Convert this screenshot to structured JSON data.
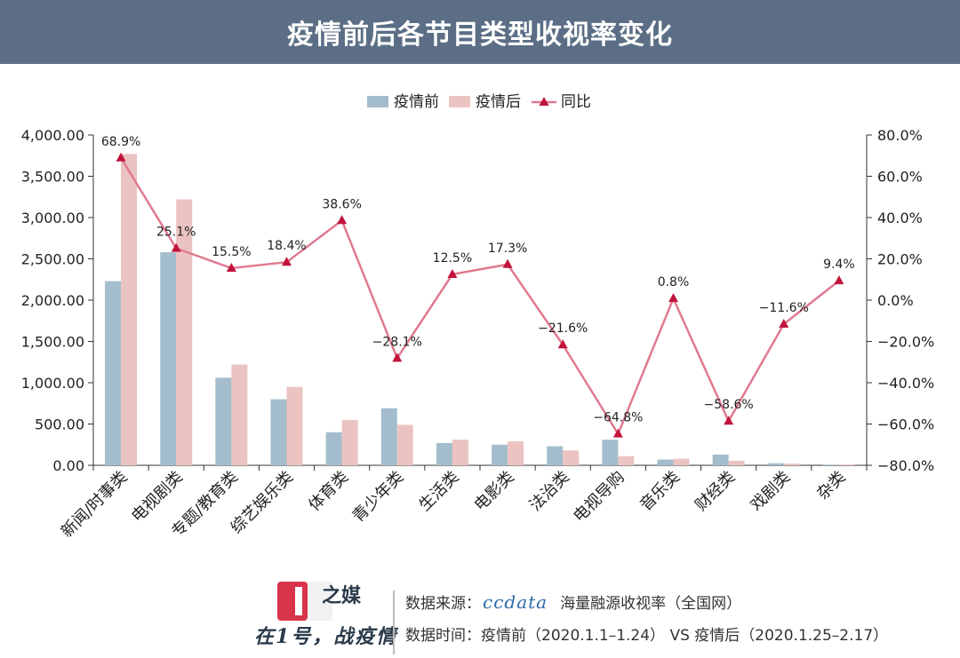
{
  "title": "疫情前后各节目类型收视率变化",
  "colors": {
    "header_bg": "#5b6e85",
    "before": "#a3bdcc",
    "after": "#ebc4c1",
    "yoy": "#e07a90",
    "yoy_marker": "#c0143c"
  },
  "legend": {
    "before": "疫情前",
    "after": "疫情后",
    "yoy": "同比"
  },
  "chart_data": {
    "type": "bar",
    "title": "疫情前后各节目类型收视率变化",
    "categories": [
      "新闻/时事类",
      "电视剧类",
      "专题/教育类",
      "综艺娱乐类",
      "体育类",
      "青少年类",
      "生活类",
      "电影类",
      "法治类",
      "电视导购",
      "音乐类",
      "财经类",
      "戏剧类",
      "杂类"
    ],
    "series": [
      {
        "name": "疫情前",
        "type": "bar",
        "axis": "left",
        "values": [
          2230,
          2580,
          1060,
          800,
          400,
          690,
          270,
          250,
          230,
          310,
          70,
          130,
          25,
          8
        ]
      },
      {
        "name": "疫情后",
        "type": "bar",
        "axis": "left",
        "values": [
          3770,
          3220,
          1220,
          950,
          550,
          490,
          310,
          290,
          180,
          110,
          80,
          55,
          20,
          10
        ]
      },
      {
        "name": "同比",
        "type": "line",
        "axis": "right",
        "values": [
          68.9,
          25.1,
          15.5,
          18.4,
          38.6,
          -28.1,
          12.5,
          17.3,
          -21.6,
          -64.8,
          0.8,
          -58.6,
          -11.6,
          9.4
        ],
        "labels": [
          "68.9%",
          "25.1%",
          "15.5%",
          "18.4%",
          "38.6%",
          "−28.1%",
          "12.5%",
          "17.3%",
          "−21.6%",
          "−64.8%",
          "0.8%",
          "−58.6%",
          "−11.6%",
          "9.4%"
        ]
      }
    ],
    "ylim_left": [
      0,
      4000
    ],
    "ylim_right": [
      -80,
      80
    ],
    "left_ticks": [
      "0.00",
      "500.00",
      "1,000.00",
      "1,500.00",
      "2,000.00",
      "2,500.00",
      "3,000.00",
      "3,500.00",
      "4,000.00"
    ],
    "right_ticks": [
      "−80.0%",
      "−60.0%",
      "−40.0%",
      "−20.0%",
      "0.0%",
      "20.0%",
      "40.0%",
      "60.0%",
      "80.0%"
    ],
    "legend_position": "top-center",
    "grid": false
  },
  "footer": {
    "logo_word": "之媒",
    "slogan": "在1号，战疫情",
    "source_label": "数据来源：",
    "source_brand": "ccdata",
    "source_desc": "海量融源收视率（全国网）",
    "time_text": "数据时间：疫情前（2020.1.1–1.24）  VS 疫情后（2020.1.25–2.17）"
  }
}
